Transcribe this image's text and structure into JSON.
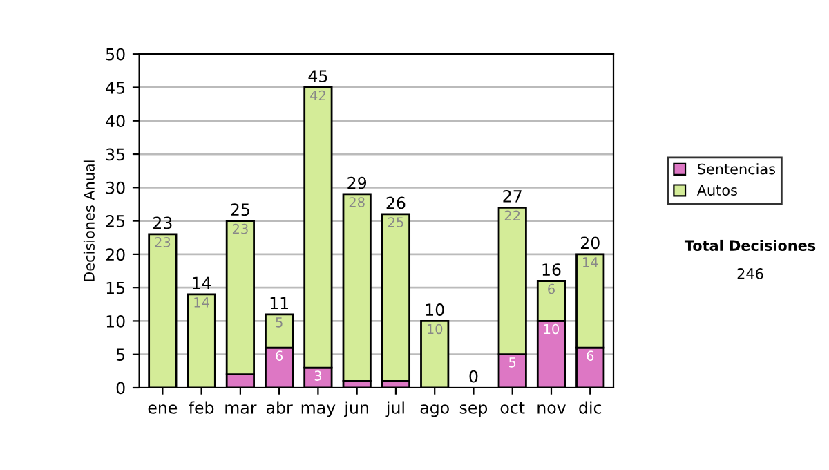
{
  "chart_data": {
    "type": "bar",
    "stacked": true,
    "ylabel": "Decisiones Anual",
    "categories": [
      "ene",
      "feb",
      "mar",
      "abr",
      "may",
      "jun",
      "jul",
      "ago",
      "sep",
      "oct",
      "nov",
      "dic"
    ],
    "series": [
      {
        "name": "Sentencias",
        "color": "#dd77c4",
        "values": [
          0,
          0,
          2,
          6,
          3,
          1,
          1,
          0,
          0,
          5,
          10,
          6
        ],
        "value_labels": [
          null,
          null,
          null,
          "6",
          "3",
          null,
          null,
          null,
          null,
          "5",
          "10",
          "6"
        ]
      },
      {
        "name": "Autos",
        "color": "#d4ec98",
        "values": [
          23,
          14,
          23,
          5,
          42,
          28,
          25,
          10,
          0,
          22,
          6,
          14
        ],
        "value_labels": [
          "23",
          "14",
          "23",
          "5",
          "42",
          "28",
          "25",
          "10",
          null,
          "22",
          "6",
          "14"
        ]
      }
    ],
    "totals": [
      "23",
      "14",
      "25",
      "11",
      "45",
      "29",
      "26",
      "10",
      "0",
      "27",
      "16",
      "20"
    ],
    "ylim": [
      0,
      50
    ],
    "yticks": [
      0,
      5,
      10,
      15,
      20,
      25,
      30,
      35,
      40,
      45,
      50
    ],
    "grid": "y",
    "legend": "right",
    "annotations": [
      "Total Decisiones",
      "246"
    ]
  }
}
